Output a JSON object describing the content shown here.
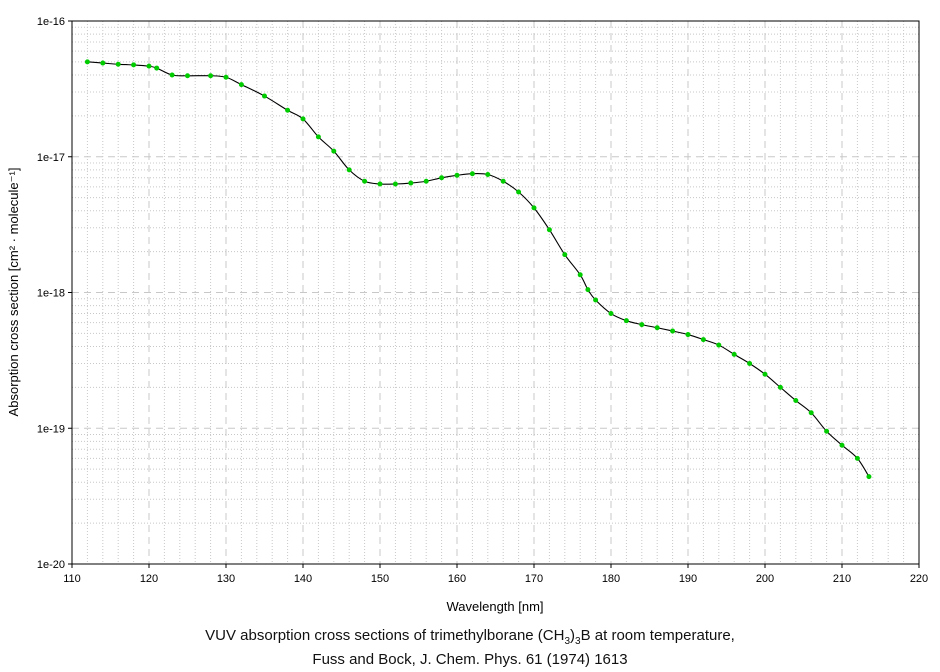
{
  "chart_data": {
    "type": "line",
    "xlabel": "Wavelength [nm]",
    "ylabel": "Absorption cross section [cm² · molecule⁻¹]",
    "xlim": [
      110,
      220
    ],
    "ylim": [
      1e-20,
      1e-16
    ],
    "yscale": "log",
    "grid": true,
    "x_ticks": [
      "110",
      "120",
      "130",
      "140",
      "150",
      "160",
      "170",
      "180",
      "190",
      "200",
      "210",
      "220"
    ],
    "y_ticks": [
      "1e-20",
      "1e-19",
      "1e-18",
      "1e-17",
      "1e-16"
    ],
    "colors": {
      "line": "#000000",
      "markers": "#00cc00",
      "grid": "#c8c8c8"
    },
    "series": [
      {
        "x": [
          112,
          114,
          116,
          118,
          120,
          121,
          123,
          125,
          128,
          130,
          132,
          135,
          138,
          140,
          142,
          144,
          146,
          148,
          150,
          152,
          154,
          156,
          158,
          160,
          162,
          164,
          166,
          168,
          170,
          172,
          174,
          176,
          177,
          178,
          180,
          182,
          184,
          186,
          188,
          190,
          192,
          194,
          196,
          198,
          200,
          202,
          204,
          206,
          208,
          210,
          212,
          213.5
        ],
        "y": [
          5e-17,
          4.9e-17,
          4.8e-17,
          4.75e-17,
          4.65e-17,
          4.5e-17,
          4e-17,
          3.95e-17,
          3.95e-17,
          3.85e-17,
          3.4e-17,
          2.8e-17,
          2.2e-17,
          1.9e-17,
          1.4e-17,
          1.1e-17,
          8e-18,
          6.6e-18,
          6.3e-18,
          6.3e-18,
          6.4e-18,
          6.6e-18,
          7e-18,
          7.3e-18,
          7.5e-18,
          7.4e-18,
          6.6e-18,
          5.5e-18,
          4.2e-18,
          2.9e-18,
          1.9e-18,
          1.35e-18,
          1.05e-18,
          8.8e-19,
          7e-19,
          6.2e-19,
          5.8e-19,
          5.5e-19,
          5.2e-19,
          4.9e-19,
          4.5e-19,
          4.1e-19,
          3.5e-19,
          3e-19,
          2.5e-19,
          2e-19,
          1.6e-19,
          1.3e-19,
          9.5e-20,
          7.5e-20,
          6e-20,
          4.4e-20
        ]
      }
    ]
  },
  "caption": {
    "line1_pre": "VUV absorption cross sections of trimethylborane (CH",
    "sub1": "3",
    "mid": ")",
    "sub2": "3",
    "line1_post": "B at room temperature,",
    "line2": "Fuss and Bock, J. Chem. Phys. 61 (1974) 1613"
  }
}
